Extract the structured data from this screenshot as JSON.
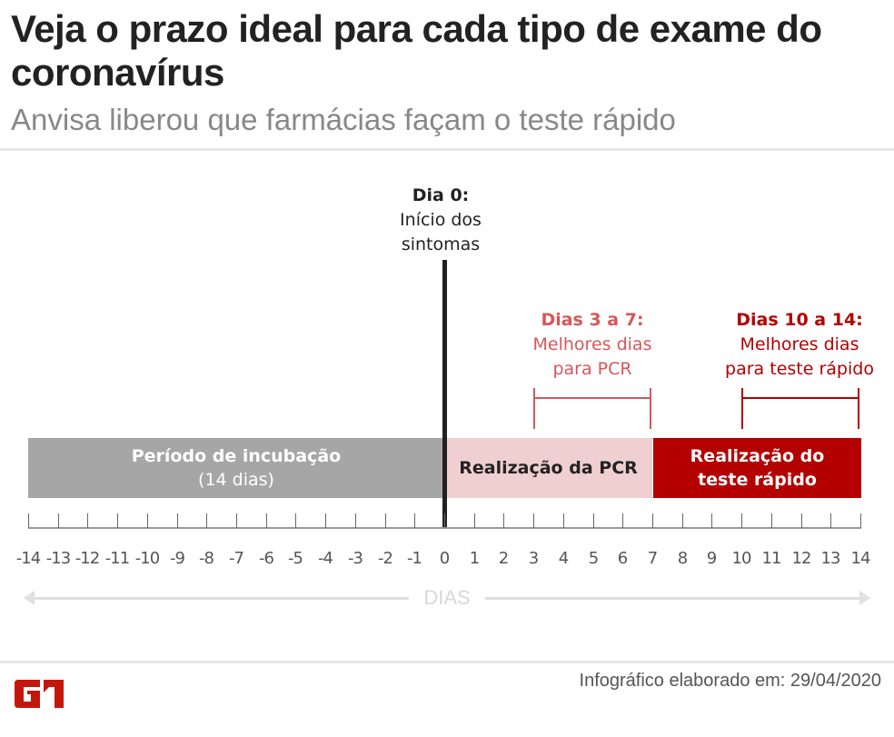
{
  "header": {
    "title": "Veja o prazo ideal para cada tipo de exame do coronavírus",
    "subtitle": "Anvisa liberou que farmácias façam o teste rápido"
  },
  "marker": {
    "day_label": "Dia 0:",
    "line1": "Início dos",
    "line2": "sintomas"
  },
  "callouts": [
    {
      "range": "Dias 3 a 7:",
      "line1": "Melhores dias",
      "line2": "para PCR",
      "start": 3,
      "end": 7,
      "color": "#d6575a"
    },
    {
      "range": "Dias 10 a 14:",
      "line1": "Melhores dias",
      "line2": "para teste rápido",
      "start": 10,
      "end": 14,
      "color": "#b40000"
    }
  ],
  "bars": [
    {
      "label": "Período de incubação",
      "sub": "(14 dias)",
      "start": -14,
      "end": 0,
      "color": "#a6a6a6",
      "text_color": "#ffffff"
    },
    {
      "label": "Realização da PCR",
      "sub": "",
      "start": 0,
      "end": 7,
      "color": "#f0cfd0",
      "text_color": "#222222"
    },
    {
      "label": "Realização do",
      "sub": "teste rápido",
      "start": 7,
      "end": 14,
      "color": "#b40000",
      "text_color": "#ffffff"
    }
  ],
  "axis": {
    "ticks": [
      "-14",
      "-13",
      "-12",
      "-11",
      "-10",
      "-9",
      "-8",
      "-7",
      "-6",
      "-5",
      "-4",
      "-3",
      "-2",
      "-1",
      "0",
      "1",
      "2",
      "3",
      "4",
      "5",
      "6",
      "7",
      "8",
      "9",
      "10",
      "11",
      "12",
      "13",
      "14"
    ],
    "label": "DIAS"
  },
  "footer": {
    "logo": "G1",
    "logo_color": "#c4170c",
    "credit": "Infográfico elaborado em: 29/04/2020"
  },
  "chart_data": {
    "type": "timeline",
    "title": "Veja o prazo ideal para cada tipo de exame do coronavírus",
    "subtitle": "Anvisa liberou que farmácias façam o teste rápido",
    "xlabel": "DIAS",
    "xlim": [
      -14,
      14
    ],
    "segments": [
      {
        "name": "Período de incubação (14 dias)",
        "start": -14,
        "end": 0
      },
      {
        "name": "Realização da PCR",
        "start": 0,
        "end": 7
      },
      {
        "name": "Realização do teste rápido",
        "start": 7,
        "end": 14
      }
    ],
    "annotations": [
      {
        "x": 0,
        "text": "Dia 0: Início dos sintomas"
      },
      {
        "start": 3,
        "end": 7,
        "text": "Dias 3 a 7: Melhores dias para PCR"
      },
      {
        "start": 10,
        "end": 14,
        "text": "Dias 10 a 14: Melhores dias para teste rápido"
      }
    ]
  }
}
